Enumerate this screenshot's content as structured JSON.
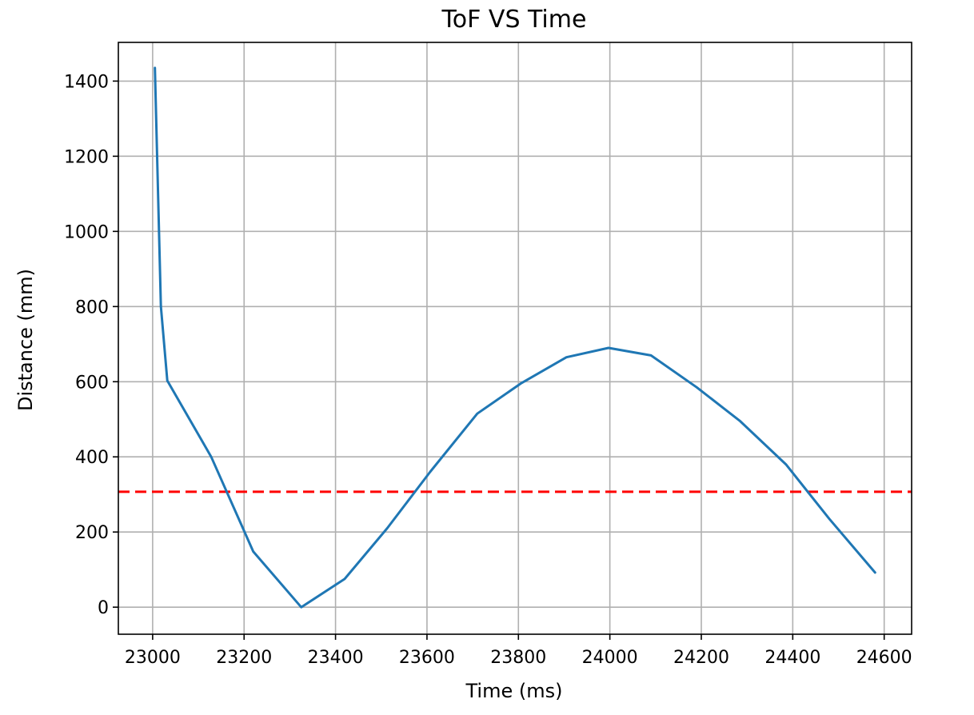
{
  "chart_data": {
    "type": "line",
    "title": "ToF VS Time",
    "xlabel": "Time (ms)",
    "ylabel": "Distance (mm)",
    "xlim": [
      22925,
      24660
    ],
    "ylim": [
      -72,
      1503
    ],
    "xticks": [
      23000,
      23200,
      23400,
      23600,
      23800,
      24000,
      24200,
      24400,
      24600
    ],
    "yticks": [
      0,
      200,
      400,
      600,
      800,
      1000,
      1200,
      1400
    ],
    "grid": true,
    "series": [
      {
        "color": "#1f77b4",
        "x": [
          23005,
          23018,
          23032,
          23128,
          23220,
          23325,
          23420,
          23513,
          23607,
          23710,
          23805,
          23905,
          23997,
          24090,
          24190,
          24285,
          24385,
          24480,
          24580
        ],
        "y": [
          1435,
          800,
          603,
          400,
          148,
          0,
          75,
          210,
          360,
          515,
          595,
          665,
          690,
          670,
          585,
          495,
          380,
          235,
          92
        ]
      }
    ],
    "reference_lines": [
      {
        "orientation": "horizontal",
        "y": 307,
        "color": "#ff0000",
        "style": "dashed"
      }
    ]
  }
}
